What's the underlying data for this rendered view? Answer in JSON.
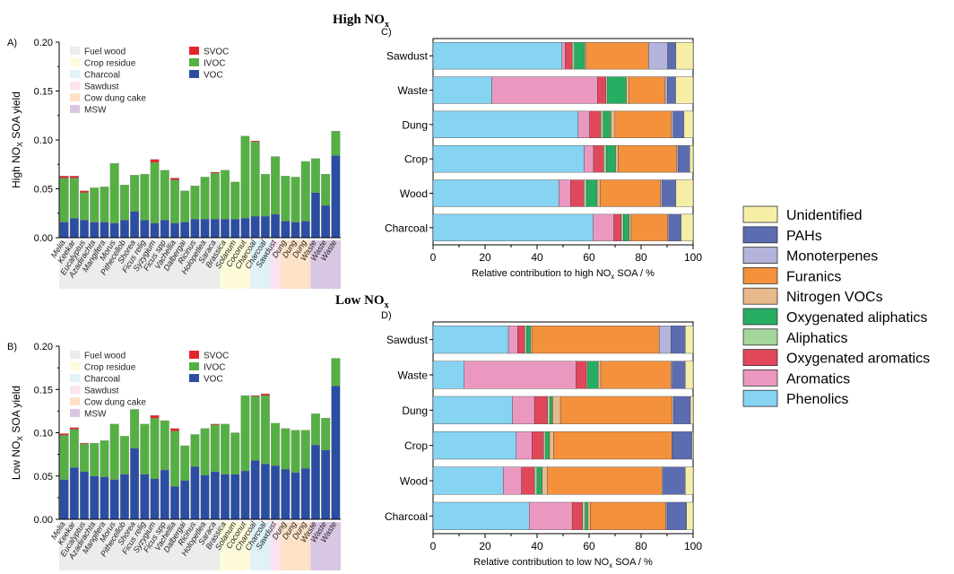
{
  "section_titles": {
    "high": {
      "main": "High NO",
      "sub": "x"
    },
    "low": {
      "main": "Low NO",
      "sub": "x"
    }
  },
  "colors": {
    "VOC": "#2b4ea2",
    "IVOC": "#55b043",
    "SVOC": "#e3262b",
    "Fuel wood": "#ececec",
    "Crop residue": "#fdfbd9",
    "Charcoal": "#dff2f8",
    "Sawdust": "#fbe2ee",
    "Cow dung cake": "#fde2c8",
    "MSW": "#d8c6e2",
    "Unidentified": "#f6eea6",
    "PAHs": "#5b6cb1",
    "Monoterpenes": "#b3b3dc",
    "Furanics": "#f4913d",
    "Nitrogen VOCs": "#e7b98b",
    "Oxygenated aliphatics": "#27ad62",
    "Aliphatics": "#a5d69c",
    "Oxygenated aromatics": "#e0475a",
    "Aromatics": "#eb98c0",
    "Phenolics": "#86d3f2"
  },
  "legend_right": [
    "Unidentified",
    "PAHs",
    "Monoterpenes",
    "Furanics",
    "Nitrogen VOCs",
    "Oxygenated aliphatics",
    "Aliphatics",
    "Oxygenated aromatics",
    "Aromatics",
    "Phenolics"
  ],
  "chart_data": [
    {
      "panel": "A)",
      "type": "bar",
      "stacked": true,
      "ylabel": {
        "prefix": "High NO",
        "sub": "X",
        "suffix": " SOA yield"
      },
      "ylim": [
        0,
        0.2
      ],
      "yticks": [
        "0.00",
        "0.05",
        "0.10",
        "0.15",
        "0.20"
      ],
      "categories": [
        "Melia",
        "Keekar",
        "Eucalyptus",
        "Azadirachta",
        "Mangifera",
        "Morus",
        "Pithecellob",
        "Shorea",
        "Ficus relig",
        "Syzygium",
        "Ficus spp",
        "Vachellia",
        "Dalbergai",
        "Ricinus",
        "Holopetlea",
        "Saraca",
        "Brassica",
        "Solanum",
        "Coconut",
        "Charcoal",
        "Charcoal",
        "Sawdust",
        "Dung",
        "Dung",
        "Dung",
        "Waste",
        "Waste",
        "Waste"
      ],
      "groups": [
        {
          "name": "Fuel wood",
          "start": 0,
          "end": 15
        },
        {
          "name": "Crop residue",
          "start": 16,
          "end": 18
        },
        {
          "name": "Charcoal",
          "start": 19,
          "end": 20
        },
        {
          "name": "Sawdust",
          "start": 21,
          "end": 21
        },
        {
          "name": "Cow dung cake",
          "start": 22,
          "end": 24
        },
        {
          "name": "MSW",
          "start": 25,
          "end": 27
        }
      ],
      "series": [
        {
          "name": "VOC",
          "values": [
            0.016,
            0.02,
            0.018,
            0.016,
            0.016,
            0.015,
            0.018,
            0.027,
            0.018,
            0.015,
            0.018,
            0.015,
            0.016,
            0.019,
            0.019,
            0.019,
            0.019,
            0.019,
            0.02,
            0.022,
            0.022,
            0.024,
            0.017,
            0.016,
            0.017,
            0.046,
            0.033,
            0.084
          ]
        },
        {
          "name": "IVOC",
          "values": [
            0.045,
            0.041,
            0.028,
            0.035,
            0.036,
            0.061,
            0.036,
            0.037,
            0.047,
            0.062,
            0.051,
            0.044,
            0.032,
            0.034,
            0.043,
            0.047,
            0.05,
            0.038,
            0.084,
            0.076,
            0.043,
            0.059,
            0.046,
            0.046,
            0.061,
            0.035,
            0.032,
            0.025
          ]
        },
        {
          "name": "SVOC",
          "values": [
            0.002,
            0.002,
            0.002,
            0.0,
            0.0,
            0.0,
            0.0,
            0.0,
            0.0,
            0.003,
            0.0,
            0.002,
            0.0,
            0.0,
            0.0,
            0.001,
            0.0,
            0.0,
            0.0,
            0.001,
            0.0,
            0.0,
            0.0,
            0.0,
            0.0,
            0.0,
            0.0,
            0.0
          ]
        }
      ],
      "legend": [
        "Fuel wood",
        "Crop residue",
        "Charcoal",
        "Sawdust",
        "Cow dung cake",
        "MSW",
        "SVOC",
        "IVOC",
        "VOC"
      ]
    },
    {
      "panel": "B)",
      "type": "bar",
      "stacked": true,
      "ylabel": {
        "prefix": "Low NO",
        "sub": "X",
        "suffix": " SOA yield"
      },
      "ylim": [
        0,
        0.2
      ],
      "yticks": [
        "0.00",
        "0.05",
        "0.10",
        "0.15",
        "0.20"
      ],
      "categories": [
        "Melia",
        "Keekar",
        "Eucalyptus",
        "Azadirachta",
        "Mangifera",
        "Morus",
        "Pithecellob",
        "Shorea",
        "Ficus relig",
        "Syzygium",
        "Ficus spp",
        "Vachellia",
        "Dalbergai",
        "Ricinus",
        "Holopetlea",
        "Saraca",
        "Brassica",
        "Solanum",
        "Coconut",
        "Charcoal",
        "Charcoal",
        "Sawdust",
        "Dung",
        "Dung",
        "Dung",
        "Waste",
        "Waste",
        "Waste"
      ],
      "groups": [
        {
          "name": "Fuel wood",
          "start": 0,
          "end": 15
        },
        {
          "name": "Crop residue",
          "start": 16,
          "end": 18
        },
        {
          "name": "Charcoal",
          "start": 19,
          "end": 20
        },
        {
          "name": "Sawdust",
          "start": 21,
          "end": 21
        },
        {
          "name": "Cow dung cake",
          "start": 22,
          "end": 24
        },
        {
          "name": "MSW",
          "start": 25,
          "end": 27
        }
      ],
      "series": [
        {
          "name": "VOC",
          "values": [
            0.046,
            0.06,
            0.055,
            0.05,
            0.049,
            0.046,
            0.052,
            0.082,
            0.052,
            0.047,
            0.057,
            0.038,
            0.045,
            0.061,
            0.051,
            0.055,
            0.052,
            0.052,
            0.056,
            0.068,
            0.064,
            0.062,
            0.058,
            0.054,
            0.059,
            0.086,
            0.08,
            0.154
          ]
        },
        {
          "name": "IVOC",
          "values": [
            0.051,
            0.044,
            0.032,
            0.038,
            0.042,
            0.064,
            0.044,
            0.045,
            0.058,
            0.07,
            0.057,
            0.064,
            0.04,
            0.037,
            0.054,
            0.054,
            0.058,
            0.048,
            0.087,
            0.074,
            0.079,
            0.049,
            0.047,
            0.049,
            0.044,
            0.036,
            0.037,
            0.032
          ]
        },
        {
          "name": "SVOC",
          "values": [
            0.002,
            0.002,
            0.001,
            0.0,
            0.0,
            0.0,
            0.0,
            0.0,
            0.0,
            0.003,
            0.0,
            0.003,
            0.0,
            0.0,
            0.0,
            0.001,
            0.0,
            0.0,
            0.0,
            0.001,
            0.002,
            0.0,
            0.0,
            0.0,
            0.0,
            0.0,
            0.0,
            0.0
          ]
        }
      ],
      "legend": [
        "Fuel wood",
        "Crop residue",
        "Charcoal",
        "Sawdust",
        "Cow dung cake",
        "MSW",
        "SVOC",
        "IVOC",
        "VOC"
      ]
    },
    {
      "panel": "C)",
      "type": "bar",
      "orientation": "horizontal",
      "stacked": true,
      "xlabel": {
        "prefix": "Relative contribution to high NO",
        "sub": "x",
        "suffix": " SOA / %"
      },
      "xlim": [
        0,
        100
      ],
      "xticks": [
        0,
        20,
        40,
        60,
        80,
        100
      ],
      "categories": [
        "Sawdust",
        "Waste",
        "Dung",
        "Crop",
        "Wood",
        "Charcoal"
      ],
      "series": [
        {
          "name": "Phenolics",
          "values": [
            49.6,
            22.6,
            55.8,
            58.1,
            48.4,
            61.6
          ]
        },
        {
          "name": "Aromatics",
          "values": [
            1.2,
            40.6,
            4.4,
            3.6,
            4.5,
            7.9
          ]
        },
        {
          "name": "Oxygenated aromatics",
          "values": [
            2.7,
            3.3,
            4.3,
            3.9,
            5.1,
            2.9
          ]
        },
        {
          "name": "Aliphatics",
          "values": [
            0.9,
            0.6,
            1.0,
            1.0,
            1.0,
            0.8
          ]
        },
        {
          "name": "Oxygenated aliphatics",
          "values": [
            3.9,
            7.2,
            2.9,
            3.6,
            4.1,
            2.2
          ]
        },
        {
          "name": "Nitrogen VOCs",
          "values": [
            0.6,
            1.0,
            1.5,
            1.0,
            1.1,
            0.8
          ]
        },
        {
          "name": "Furanics",
          "values": [
            24.0,
            14.0,
            21.8,
            22.5,
            23.3,
            14.0
          ]
        },
        {
          "name": "Monoterpenes",
          "values": [
            7.3,
            0.8,
            0.7,
            0.5,
            0.6,
            0.5
          ]
        },
        {
          "name": "PAHs",
          "values": [
            3.2,
            3.2,
            4.1,
            4.5,
            5.3,
            4.7
          ]
        },
        {
          "name": "Unidentified",
          "values": [
            6.6,
            6.7,
            3.5,
            1.3,
            6.6,
            4.6
          ]
        }
      ]
    },
    {
      "panel": "D)",
      "type": "bar",
      "orientation": "horizontal",
      "stacked": true,
      "xlabel": {
        "prefix": "Relative contribution to low NO",
        "sub": "x",
        "suffix": " SOA / %"
      },
      "xlim": [
        0,
        100
      ],
      "xticks": [
        0,
        20,
        40,
        60,
        80,
        100
      ],
      "categories": [
        "Sawdust",
        "Waste",
        "Dung",
        "Crop",
        "Wood",
        "Charcoal"
      ],
      "series": [
        {
          "name": "Phenolics",
          "values": [
            29.0,
            12.0,
            30.5,
            32.0,
            27.0,
            37.0
          ]
        },
        {
          "name": "Aromatics",
          "values": [
            3.5,
            43.0,
            8.5,
            6.0,
            7.0,
            16.5
          ]
        },
        {
          "name": "Oxygenated aromatics",
          "values": [
            2.7,
            4.0,
            5.0,
            4.5,
            5.0,
            4.0
          ]
        },
        {
          "name": "Aliphatics",
          "values": [
            0.8,
            0.5,
            1.0,
            0.8,
            1.0,
            1.0
          ]
        },
        {
          "name": "Oxygenated aliphatics",
          "values": [
            1.5,
            4.0,
            1.0,
            1.5,
            2.0,
            1.0
          ]
        },
        {
          "name": "Nitrogen VOCs",
          "values": [
            0.5,
            1.0,
            3.0,
            1.5,
            2.0,
            1.0
          ]
        },
        {
          "name": "Furanics",
          "values": [
            49.0,
            27.0,
            43.0,
            45.5,
            44.0,
            29.0
          ]
        },
        {
          "name": "Monoterpenes",
          "values": [
            4.5,
            0.5,
            0.5,
            0.3,
            0.5,
            0.5
          ]
        },
        {
          "name": "PAHs",
          "values": [
            5.5,
            5.0,
            6.5,
            7.5,
            8.5,
            7.5
          ]
        },
        {
          "name": "Unidentified",
          "values": [
            3.0,
            3.0,
            1.0,
            0.4,
            3.0,
            2.5
          ]
        }
      ]
    }
  ]
}
